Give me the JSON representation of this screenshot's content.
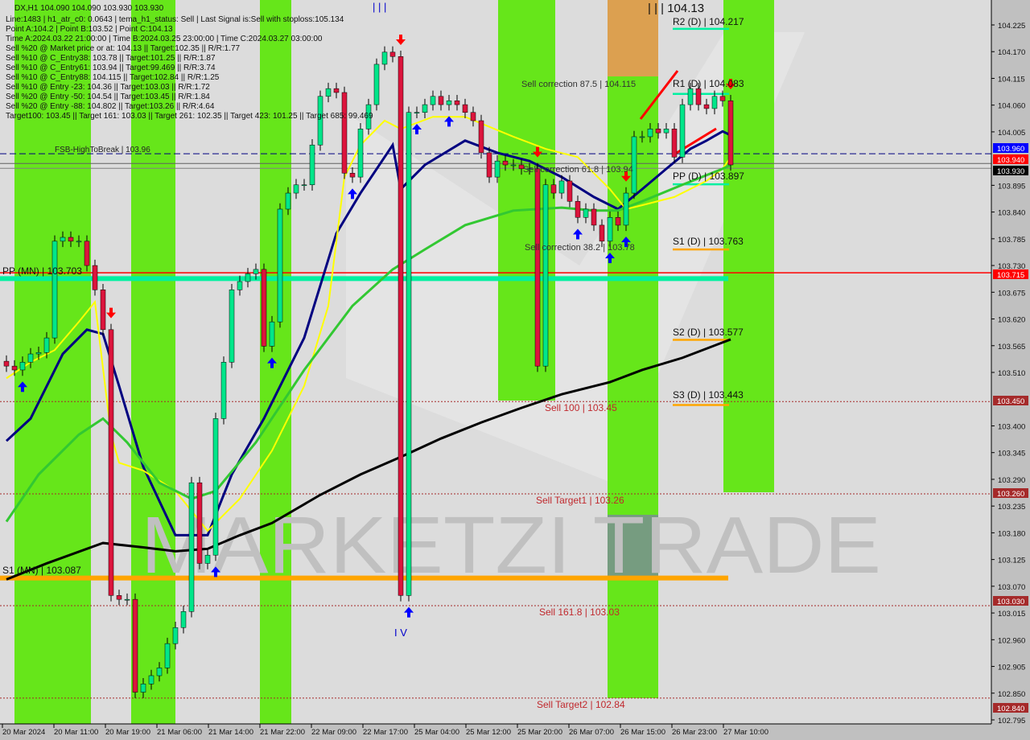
{
  "header": {
    "symbol_line": "DX,H1  104.090 104.090 103.930 103.930",
    "info_lines": [
      "Line:1483 | h1_atr_c0: 0.0643 | tema_h1_status: Sell | Last Signal is:Sell with stoploss:105.134",
      "Point A:104.2 | Point B:103.52 | Point C:104.13",
      "Time A:2024.03.22 21:00:00 | Time B:2024.03.25 23:00:00 | Time C:2024.03.27 03:00:00",
      "Sell %20 @ Market price or at: 104.13 || Target:102.35 || R/R:1.77",
      "Sell %10 @ C_Entry38: 103.78 || Target:101.25 || R/R:1.87",
      "Sell %10 @ C_Entry61: 103.94 || Target:99.469 || R/R:3.74",
      "Sell %10 @ C_Entry88: 104.115 || Target:102.84 || R/R:1.25",
      "Sell %10 @ Entry -23: 104.36 || Target:103.03 || R/R:1.72",
      "Sell %20 @ Entry -50: 104.54 || Target:103.45 || R/R:1.84",
      "Sell %20 @ Entry -88: 104.802 || Target:103.26 || R/R:4.64",
      "Target100: 103.45 || Target 161: 103.03 || Target 261: 102.35 || Target 423: 101.25 || Target 685: 99.469"
    ]
  },
  "labels": {
    "fsb": "FSB-HighToBreak | 103.96",
    "corr875": "Sell correction 87.5 | 104.115",
    "corr618": "Sell correction 61.8 | 103.94",
    "corr382": "Sell correction 38.2 | 103.78",
    "sell100": "Sell 100 | 103.45",
    "target1": "Sell Target1 | 103.26",
    "sell1618": "Sell 161.8 | 103.03",
    "target2": "Sell Target2 | 102.84",
    "pointc": "| | | 104.13",
    "wave3": "| | |",
    "wave4": "I V",
    "pp_mn": "PP (MN) | 103.703",
    "s1_mn": "S1 (MN) | 103.087",
    "r2_d": "R2 (D) | 104.217",
    "r1_d": "R1 (D) | 104.083",
    "pp_d": "PP (D) | 103.897",
    "s1_d": "S1 (D) | 103.763",
    "s2_d": "S2 (D) | 103.577",
    "s3_d": "S3 (D) | 103.443",
    "watermark": "MARKETZI TRADE"
  },
  "price_tags": [
    {
      "text": "103.960",
      "color": "#0000ff"
    },
    {
      "text": "103.940",
      "color": "#ff0000"
    },
    {
      "text": "103.930",
      "color": "#000000"
    },
    {
      "text": "103.715",
      "color": "#ff0000"
    },
    {
      "text": "103.450",
      "color": "#a52a2a"
    },
    {
      "text": "103.260",
      "color": "#a52a2a"
    },
    {
      "text": "103.030",
      "color": "#a52a2a"
    },
    {
      "text": "102.840",
      "color": "#a52a2a"
    }
  ],
  "chart_data": {
    "type": "candlestick",
    "symbol": "DX",
    "timeframe": "H1",
    "ylim": [
      102.795,
      104.225
    ],
    "y_ticks": [
      "104.225",
      "104.170",
      "104.115",
      "104.060",
      "104.005",
      "103.895",
      "103.840",
      "103.785",
      "103.730",
      "103.675",
      "103.620",
      "103.565",
      "103.510",
      "103.400",
      "103.345",
      "103.290",
      "103.235",
      "103.180",
      "103.125",
      "103.070",
      "103.015",
      "102.960",
      "102.905",
      "102.850",
      "102.795"
    ],
    "x_ticks": [
      "20 Mar 2024",
      "20 Mar 11:00",
      "20 Mar 19:00",
      "21 Mar 06:00",
      "21 Mar 14:00",
      "21 Mar 22:00",
      "22 Mar 09:00",
      "22 Mar 17:00",
      "25 Mar 04:00",
      "25 Mar 12:00",
      "25 Mar 20:00",
      "26 Mar 07:00",
      "26 Mar 15:00",
      "26 Mar 23:00",
      "27 Mar 10:00"
    ],
    "closes": [
      103.523,
      103.515,
      103.531,
      103.548,
      103.551,
      103.581,
      103.78,
      103.788,
      103.78,
      103.78,
      103.73,
      103.68,
      103.598,
      103.051,
      103.043,
      103.043,
      102.852,
      102.869,
      102.886,
      102.902,
      102.952,
      102.985,
      103.018,
      103.283,
      103.117,
      103.134,
      103.415,
      103.531,
      103.68,
      103.697,
      103.713,
      103.722,
      103.564,
      103.614,
      103.846,
      103.879,
      103.896,
      103.896,
      103.978,
      104.078,
      104.094,
      104.086,
      103.92,
      103.912,
      104.011,
      104.061,
      104.144,
      104.169,
      104.16,
      103.051,
      104.045,
      104.045,
      104.061,
      104.078,
      104.061,
      104.069,
      104.061,
      104.045,
      104.028,
      103.962,
      103.912,
      103.945,
      103.937,
      103.937,
      103.929,
      103.929,
      103.523,
      103.896,
      103.879,
      103.904,
      103.862,
      103.829,
      103.846,
      103.813,
      103.78,
      103.829,
      103.813,
      103.879,
      103.995,
      103.995,
      104.011,
      104.003,
      104.011,
      103.953,
      104.061,
      104.094,
      104.061,
      104.053,
      104.078,
      104.069,
      103.937
    ],
    "ma_series": [
      {
        "color": "#000080",
        "points": [
          [
            0,
            103.369
          ],
          [
            3,
            103.415
          ],
          [
            7,
            103.548
          ],
          [
            10,
            103.598
          ],
          [
            12,
            103.589
          ],
          [
            14,
            103.482
          ],
          [
            17,
            103.316
          ],
          [
            21,
            103.175
          ],
          [
            25,
            103.175
          ],
          [
            28,
            103.3
          ],
          [
            32,
            103.415
          ],
          [
            37,
            103.581
          ],
          [
            41,
            103.796
          ],
          [
            44,
            103.879
          ],
          [
            48,
            103.978
          ],
          [
            49,
            103.887
          ],
          [
            52,
            103.937
          ],
          [
            57,
            103.987
          ],
          [
            61,
            103.962
          ],
          [
            65,
            103.945
          ],
          [
            69,
            103.912
          ],
          [
            73,
            103.871
          ],
          [
            76,
            103.846
          ],
          [
            79,
            103.887
          ],
          [
            82,
            103.929
          ],
          [
            85,
            103.97
          ],
          [
            87,
            103.987
          ],
          [
            89,
            104.006
          ],
          [
            90,
            103.998
          ]
        ]
      },
      {
        "color": "#ffff00",
        "points": [
          [
            0,
            103.498
          ],
          [
            3,
            103.531
          ],
          [
            6,
            103.556
          ],
          [
            9,
            103.614
          ],
          [
            11,
            103.655
          ],
          [
            13,
            103.382
          ],
          [
            14,
            103.324
          ],
          [
            17,
            103.308
          ],
          [
            21,
            103.266
          ],
          [
            25,
            103.184
          ],
          [
            29,
            103.25
          ],
          [
            33,
            103.349
          ],
          [
            37,
            103.482
          ],
          [
            40,
            103.647
          ],
          [
            42,
            103.912
          ],
          [
            44,
            103.978
          ],
          [
            47,
            104.028
          ],
          [
            49,
            104.011
          ],
          [
            53,
            104.036
          ],
          [
            57,
            104.036
          ],
          [
            63,
            103.995
          ],
          [
            67,
            103.97
          ],
          [
            71,
            103.953
          ],
          [
            75,
            103.887
          ],
          [
            77,
            103.846
          ],
          [
            79,
            103.854
          ],
          [
            83,
            103.871
          ],
          [
            87,
            103.904
          ],
          [
            89,
            103.929
          ],
          [
            90,
            103.953
          ]
        ]
      },
      {
        "color": "#32c832",
        "points": [
          [
            0,
            103.203
          ],
          [
            4,
            103.3
          ],
          [
            9,
            103.382
          ],
          [
            12,
            103.415
          ],
          [
            15,
            103.366
          ],
          [
            19,
            103.283
          ],
          [
            23,
            103.25
          ],
          [
            26,
            103.266
          ],
          [
            31,
            103.366
          ],
          [
            37,
            103.515
          ],
          [
            43,
            103.647
          ],
          [
            48,
            103.722
          ],
          [
            52,
            103.763
          ],
          [
            57,
            103.813
          ],
          [
            63,
            103.843
          ],
          [
            69,
            103.849
          ],
          [
            73,
            103.843
          ],
          [
            76,
            103.843
          ],
          [
            79,
            103.862
          ],
          [
            84,
            103.896
          ],
          [
            89,
            103.929
          ],
          [
            90,
            103.937
          ]
        ]
      },
      {
        "color": "#000000",
        "points": [
          [
            0,
            103.084
          ],
          [
            5,
            103.117
          ],
          [
            12,
            103.159
          ],
          [
            17,
            103.15
          ],
          [
            21,
            103.142
          ],
          [
            25,
            103.147
          ],
          [
            29,
            103.175
          ],
          [
            33,
            103.2
          ],
          [
            39,
            103.258
          ],
          [
            44,
            103.3
          ],
          [
            49,
            103.336
          ],
          [
            54,
            103.374
          ],
          [
            59,
            103.407
          ],
          [
            64,
            103.437
          ],
          [
            69,
            103.465
          ],
          [
            75,
            103.49
          ],
          [
            79,
            103.515
          ],
          [
            84,
            103.54
          ],
          [
            90,
            103.578
          ]
        ]
      }
    ],
    "levels": [
      {
        "price": 103.96,
        "color": "#000080",
        "style": "dashed"
      },
      {
        "price": 103.94,
        "color": "#606060",
        "style": "solid"
      },
      {
        "price": 103.93,
        "color": "#808080",
        "style": "solid"
      },
      {
        "price": 103.715,
        "color": "#ff0000",
        "style": "solid"
      },
      {
        "price": 103.45,
        "color": "#a52a2a",
        "style": "dotted"
      },
      {
        "price": 103.26,
        "color": "#a52a2a",
        "style": "dotted"
      },
      {
        "price": 103.03,
        "color": "#a52a2a",
        "style": "dotted"
      },
      {
        "price": 102.84,
        "color": "#a52a2a",
        "style": "dotted"
      }
    ],
    "monthly_pivots": [
      {
        "name": "PP (MN)",
        "price": 103.703,
        "color": "#00f0a0"
      },
      {
        "name": "S1 (MN)",
        "price": 103.087,
        "color": "#ffa500"
      }
    ],
    "daily_pivots": [
      {
        "name": "R2 (D)",
        "price": 104.217,
        "color": "#00f0a0"
      },
      {
        "name": "R1 (D)",
        "price": 104.083,
        "color": "#00f0a0"
      },
      {
        "name": "PP (D)",
        "price": 103.897,
        "color": "#00f0a0"
      },
      {
        "name": "S1 (D)",
        "price": 103.763,
        "color": "#ffa500"
      },
      {
        "name": "S2 (D)",
        "price": 103.577,
        "color": "#ffa500"
      },
      {
        "name": "S3 (D)",
        "price": 103.443,
        "color": "#ffa500"
      }
    ],
    "sell_arrows": [
      49,
      13,
      66,
      77,
      90
    ],
    "buy_arrows": [
      2,
      33,
      43,
      50,
      51,
      55,
      71,
      77,
      75,
      26
    ],
    "colors": {
      "bull": "#00e68a",
      "bear": "#dc143c",
      "zone": "#66e61a",
      "zone_orange": "#dca050",
      "background": "#dcdcdc"
    }
  }
}
